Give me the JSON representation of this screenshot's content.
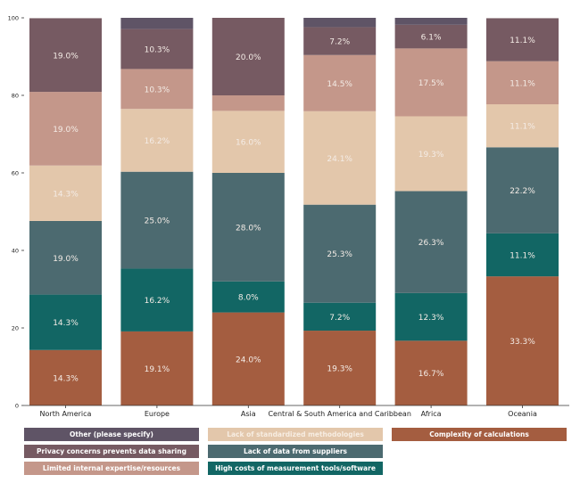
{
  "chart_data": {
    "type": "bar",
    "stacked": true,
    "title": "",
    "xlabel": "",
    "ylabel": "",
    "ylim": [
      0,
      100
    ],
    "yticks": [
      0,
      20,
      40,
      60,
      80,
      100
    ],
    "categories": [
      "North America",
      "Europe",
      "Asia",
      "Central & South America and Caribbean",
      "Africa",
      "Oceania"
    ],
    "series": [
      {
        "name": "Complexity of calculations",
        "color": "#a45d40",
        "values": [
          14.3,
          19.1,
          24.0,
          19.3,
          16.7,
          33.3
        ]
      },
      {
        "name": "High costs of measurement tools/software",
        "color": "#126664",
        "values": [
          14.3,
          16.2,
          8.0,
          7.2,
          12.3,
          11.1
        ]
      },
      {
        "name": "Lack of data from suppliers",
        "color": "#4c6a70",
        "values": [
          19.0,
          25.0,
          28.0,
          25.3,
          26.3,
          22.2
        ]
      },
      {
        "name": "Lack of standardized methodologies",
        "color": "#e3c7ab",
        "values": [
          14.3,
          16.2,
          16.0,
          24.1,
          19.3,
          11.1
        ]
      },
      {
        "name": "Limited internal expertise/resources",
        "color": "#c4978a",
        "values": [
          19.0,
          10.3,
          4.0,
          14.5,
          17.5,
          11.1
        ]
      },
      {
        "name": "Privacy concerns prevents data sharing",
        "color": "#765a62",
        "values": [
          19.0,
          10.3,
          20.0,
          7.2,
          6.1,
          11.1
        ]
      },
      {
        "name": "Other (please specify)",
        "color": "#5f5466",
        "values": [
          0,
          2.9,
          0,
          2.4,
          1.8,
          0
        ]
      }
    ],
    "label_threshold": 5,
    "legend_placement": "bottom",
    "legend_order": [
      "Other (please specify)",
      "Privacy concerns prevents data sharing",
      "Limited internal expertise/resources",
      "Lack of standardized methodologies",
      "Lack of data from suppliers",
      "High costs of measurement tools/software",
      "Complexity of calculations"
    ],
    "grid": false
  }
}
